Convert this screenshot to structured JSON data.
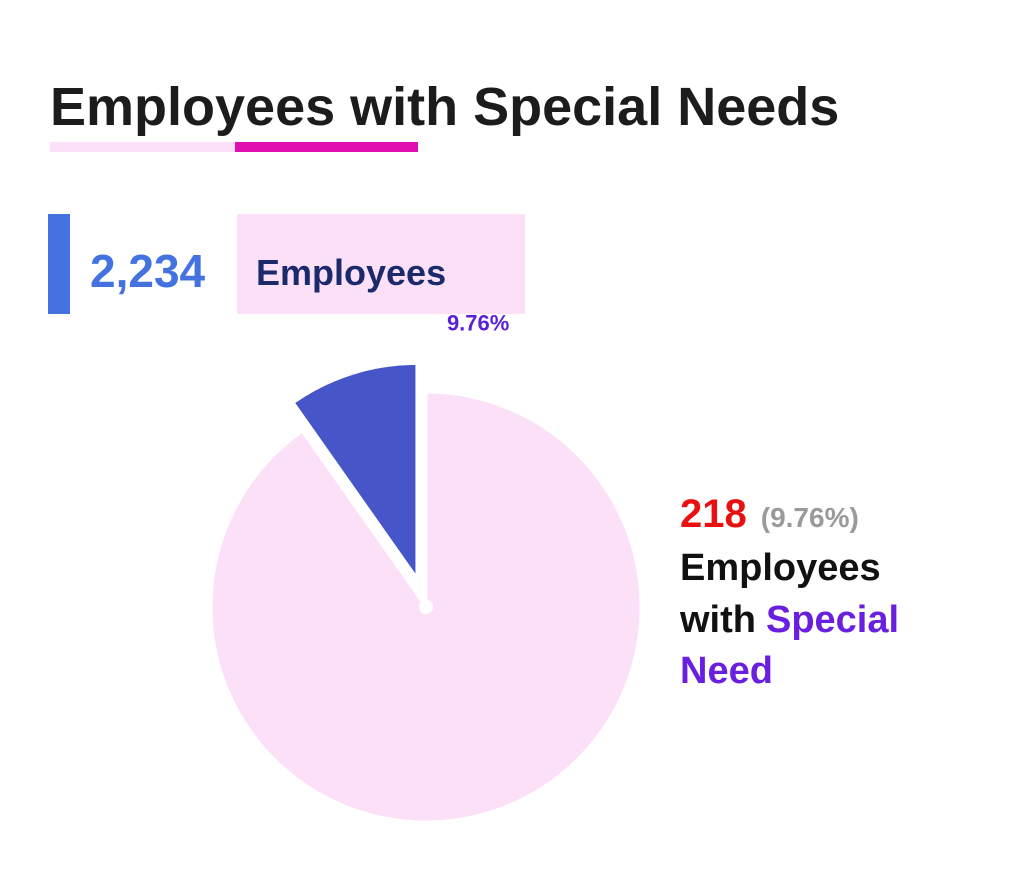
{
  "chart_data": {
    "type": "pie",
    "title": "Employees with Special Needs",
    "categories": [
      null,
      null
    ],
    "values": [
      9.76,
      90.24
    ],
    "value_labels": [
      "9.76%",
      null
    ],
    "colors": [
      "#4656c8",
      "#fce0f8"
    ],
    "exploded": [
      true,
      false
    ]
  },
  "total": {
    "count": "2,234",
    "label": "Employees"
  },
  "callout": {
    "count": "218",
    "percent": "(9.76%)",
    "line1": "Employees",
    "line2_start": "with",
    "line2_end": "Special",
    "line3": "Need"
  }
}
